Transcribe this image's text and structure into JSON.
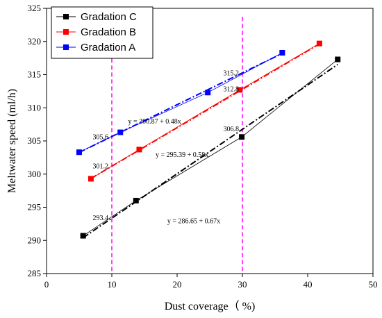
{
  "chart_data": {
    "type": "line",
    "xlabel": "Dust coverage（ %)",
    "ylabel": "Meltwater speed (ml/h)",
    "xlim": [
      0,
      50
    ],
    "ylim": [
      285,
      325
    ],
    "xticks": [
      0,
      10,
      20,
      30,
      40,
      50
    ],
    "yticks": [
      285,
      290,
      295,
      300,
      305,
      310,
      315,
      320,
      325
    ],
    "xtick_labels": [
      "0",
      "10",
      "20",
      "30",
      "40",
      "50"
    ],
    "ytick_labels": [
      "285",
      "290",
      "295",
      "300",
      "305",
      "310",
      "315",
      "320",
      "325"
    ],
    "grid": false,
    "legend_position": "top-left",
    "series": [
      {
        "name": "Gradation C",
        "color": "#000000",
        "marker": "square",
        "x": [
          5.6,
          13.7,
          29.9,
          44.6
        ],
        "y": [
          290.7,
          296.0,
          305.6,
          317.3
        ],
        "fit": {
          "label": "y = 286.65 + 0.67x",
          "intercept": 286.65,
          "slope": 0.67
        }
      },
      {
        "name": "Gradation B",
        "color": "#ff0000",
        "marker": "square",
        "x": [
          6.8,
          14.2,
          29.6,
          41.8
        ],
        "y": [
          299.3,
          303.7,
          312.7,
          319.7
        ],
        "fit": {
          "label": "y = 295.39 + 0.58x",
          "intercept": 295.39,
          "slope": 0.58
        }
      },
      {
        "name": "Gradation A",
        "color": "#0000ff",
        "marker": "square",
        "x": [
          5.0,
          11.3,
          24.7,
          36.1
        ],
        "y": [
          303.3,
          306.3,
          312.3,
          318.3
        ],
        "fit": {
          "label": "y = 300.87 + 0.48x",
          "intercept": 300.87,
          "slope": 0.48
        }
      }
    ],
    "reference_lines": [
      {
        "x": 10,
        "color": "#ff00ff"
      },
      {
        "x": 30,
        "color": "#ff00ff"
      }
    ],
    "annotations": [
      {
        "text": "293.4",
        "x": 10,
        "y": 293.4
      },
      {
        "text": "301.2",
        "x": 10,
        "y": 301.2
      },
      {
        "text": "305.6",
        "x": 10,
        "y": 305.6
      },
      {
        "text": "306.8",
        "x": 30,
        "y": 306.8
      },
      {
        "text": "312.8",
        "x": 30,
        "y": 312.8
      },
      {
        "text": "315.2",
        "x": 30,
        "y": 315.2
      }
    ]
  }
}
